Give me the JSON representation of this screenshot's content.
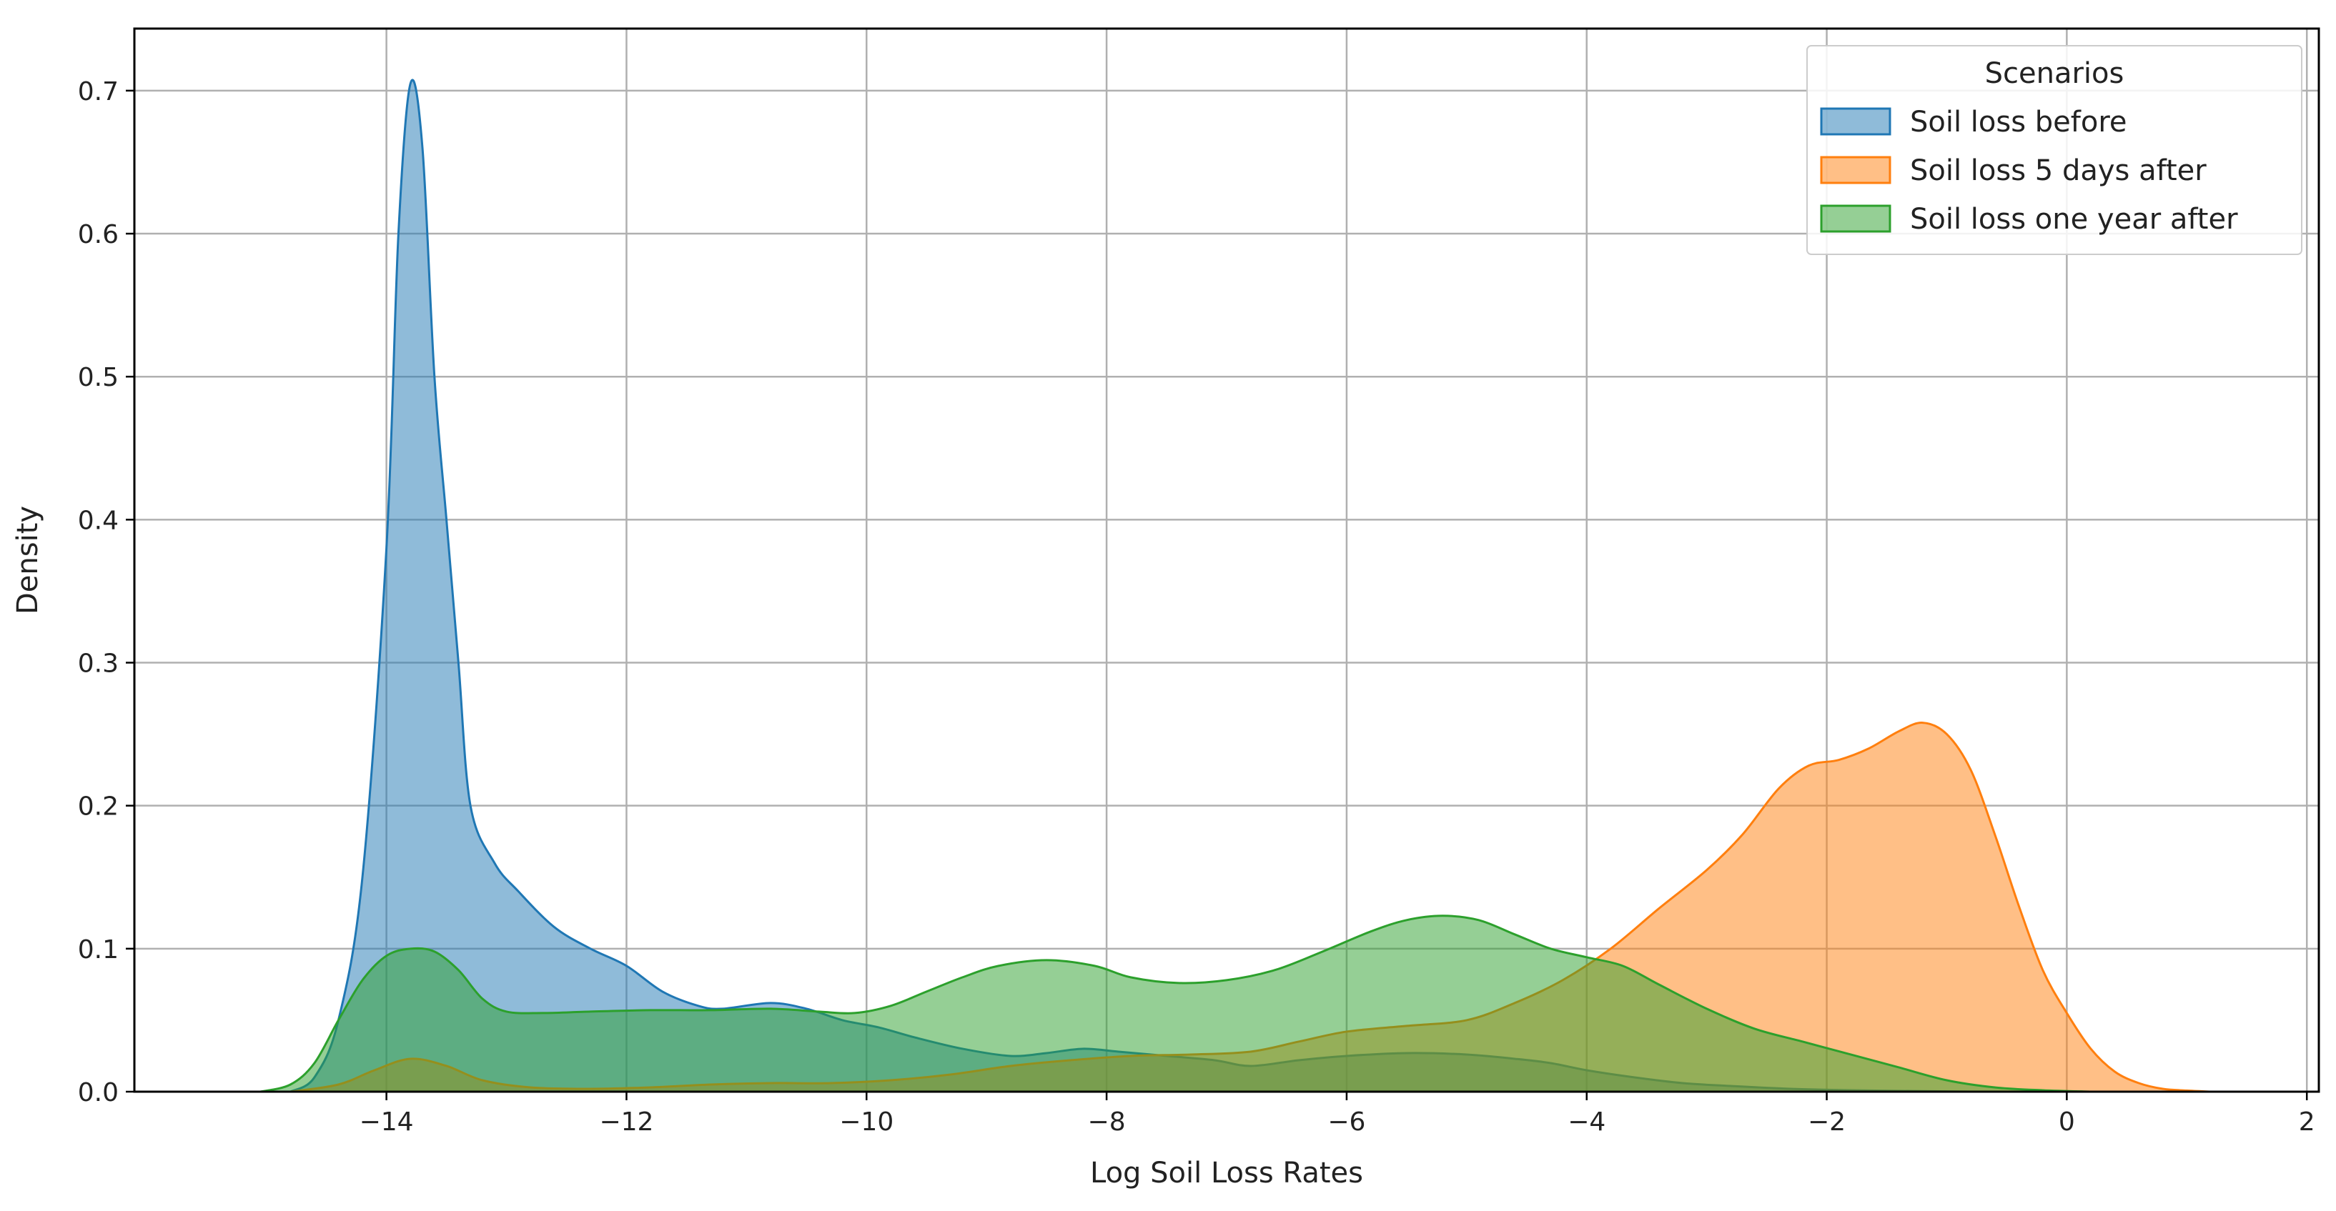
{
  "chart_data": {
    "type": "area",
    "title": "",
    "xlabel": "Log Soil Loss Rates",
    "ylabel": "Density",
    "xlim": [
      -16.1,
      2.1
    ],
    "ylim": [
      0,
      0.7434
    ],
    "xticks": [
      -14,
      -12,
      -10,
      -8,
      -6,
      -4,
      -2,
      0,
      2
    ],
    "xtick_labels": [
      "−14",
      "−12",
      "−10",
      "−8",
      "−6",
      "−4",
      "−2",
      "0",
      "2"
    ],
    "yticks": [
      0.0,
      0.1,
      0.2,
      0.3,
      0.4,
      0.5,
      0.6,
      0.7
    ],
    "ytick_labels": [
      "0.0",
      "0.1",
      "0.2",
      "0.3",
      "0.4",
      "0.5",
      "0.6",
      "0.7"
    ],
    "grid": true,
    "legend": {
      "title": "Scenarios",
      "position": "top-right"
    },
    "series": [
      {
        "name": "Soil loss before",
        "fill": "#1f77b4",
        "line": "#1f77b4",
        "points": [
          [
            -14.8,
            0.0
          ],
          [
            -14.6,
            0.01
          ],
          [
            -14.4,
            0.05
          ],
          [
            -14.2,
            0.15
          ],
          [
            -14.0,
            0.38
          ],
          [
            -13.9,
            0.6
          ],
          [
            -13.8,
            0.705
          ],
          [
            -13.7,
            0.66
          ],
          [
            -13.6,
            0.5
          ],
          [
            -13.5,
            0.4
          ],
          [
            -13.4,
            0.3
          ],
          [
            -13.3,
            0.2
          ],
          [
            -13.1,
            0.16
          ],
          [
            -12.9,
            0.14
          ],
          [
            -12.6,
            0.115
          ],
          [
            -12.3,
            0.1
          ],
          [
            -12.0,
            0.088
          ],
          [
            -11.7,
            0.07
          ],
          [
            -11.4,
            0.06
          ],
          [
            -11.2,
            0.058
          ],
          [
            -10.8,
            0.062
          ],
          [
            -10.5,
            0.058
          ],
          [
            -10.2,
            0.05
          ],
          [
            -9.9,
            0.045
          ],
          [
            -9.6,
            0.038
          ],
          [
            -9.2,
            0.03
          ],
          [
            -8.8,
            0.025
          ],
          [
            -8.5,
            0.027
          ],
          [
            -8.2,
            0.03
          ],
          [
            -7.9,
            0.028
          ],
          [
            -7.5,
            0.025
          ],
          [
            -7.1,
            0.022
          ],
          [
            -6.8,
            0.018
          ],
          [
            -6.4,
            0.022
          ],
          [
            -6.0,
            0.025
          ],
          [
            -5.5,
            0.027
          ],
          [
            -5.0,
            0.026
          ],
          [
            -4.6,
            0.023
          ],
          [
            -4.3,
            0.02
          ],
          [
            -4.0,
            0.015
          ],
          [
            -3.6,
            0.01
          ],
          [
            -3.2,
            0.006
          ],
          [
            -2.8,
            0.004
          ],
          [
            -2.3,
            0.002
          ],
          [
            -1.8,
            0.001
          ],
          [
            -1.3,
            0.0005
          ],
          [
            -0.8,
            0.0
          ]
        ]
      },
      {
        "name": "Soil loss 5 days after",
        "fill": "#ff7f0e",
        "line": "#ff7f0e",
        "points": [
          [
            -14.8,
            0.0
          ],
          [
            -14.4,
            0.005
          ],
          [
            -14.1,
            0.015
          ],
          [
            -13.8,
            0.023
          ],
          [
            -13.5,
            0.018
          ],
          [
            -13.2,
            0.008
          ],
          [
            -12.8,
            0.003
          ],
          [
            -12.3,
            0.002
          ],
          [
            -11.8,
            0.003
          ],
          [
            -11.3,
            0.005
          ],
          [
            -10.8,
            0.006
          ],
          [
            -10.3,
            0.006
          ],
          [
            -9.8,
            0.008
          ],
          [
            -9.3,
            0.012
          ],
          [
            -8.8,
            0.018
          ],
          [
            -8.3,
            0.022
          ],
          [
            -7.8,
            0.025
          ],
          [
            -7.3,
            0.026
          ],
          [
            -6.8,
            0.028
          ],
          [
            -6.4,
            0.035
          ],
          [
            -6.0,
            0.042
          ],
          [
            -5.5,
            0.046
          ],
          [
            -5.0,
            0.05
          ],
          [
            -4.6,
            0.062
          ],
          [
            -4.2,
            0.078
          ],
          [
            -3.8,
            0.1
          ],
          [
            -3.4,
            0.128
          ],
          [
            -3.0,
            0.155
          ],
          [
            -2.7,
            0.18
          ],
          [
            -2.4,
            0.212
          ],
          [
            -2.15,
            0.228
          ],
          [
            -1.9,
            0.232
          ],
          [
            -1.65,
            0.24
          ],
          [
            -1.4,
            0.252
          ],
          [
            -1.2,
            0.258
          ],
          [
            -1.0,
            0.25
          ],
          [
            -0.8,
            0.225
          ],
          [
            -0.6,
            0.18
          ],
          [
            -0.4,
            0.13
          ],
          [
            -0.2,
            0.085
          ],
          [
            0.0,
            0.055
          ],
          [
            0.2,
            0.03
          ],
          [
            0.4,
            0.014
          ],
          [
            0.6,
            0.006
          ],
          [
            0.8,
            0.002
          ],
          [
            1.0,
            0.0008
          ],
          [
            1.2,
            0.0
          ]
        ]
      },
      {
        "name": "Soil loss one year after",
        "fill": "#2ca02c",
        "line": "#2ca02c",
        "points": [
          [
            -15.05,
            0.0
          ],
          [
            -14.8,
            0.005
          ],
          [
            -14.6,
            0.02
          ],
          [
            -14.4,
            0.05
          ],
          [
            -14.2,
            0.078
          ],
          [
            -14.0,
            0.095
          ],
          [
            -13.8,
            0.1
          ],
          [
            -13.6,
            0.098
          ],
          [
            -13.4,
            0.085
          ],
          [
            -13.2,
            0.065
          ],
          [
            -13.0,
            0.056
          ],
          [
            -12.7,
            0.055
          ],
          [
            -12.3,
            0.056
          ],
          [
            -11.8,
            0.057
          ],
          [
            -11.3,
            0.057
          ],
          [
            -10.8,
            0.058
          ],
          [
            -10.4,
            0.056
          ],
          [
            -10.1,
            0.055
          ],
          [
            -9.8,
            0.06
          ],
          [
            -9.5,
            0.07
          ],
          [
            -9.2,
            0.08
          ],
          [
            -8.9,
            0.088
          ],
          [
            -8.5,
            0.092
          ],
          [
            -8.1,
            0.088
          ],
          [
            -7.8,
            0.08
          ],
          [
            -7.4,
            0.076
          ],
          [
            -7.0,
            0.078
          ],
          [
            -6.6,
            0.085
          ],
          [
            -6.2,
            0.098
          ],
          [
            -5.8,
            0.112
          ],
          [
            -5.5,
            0.12
          ],
          [
            -5.2,
            0.123
          ],
          [
            -4.9,
            0.12
          ],
          [
            -4.6,
            0.11
          ],
          [
            -4.3,
            0.1
          ],
          [
            -4.0,
            0.094
          ],
          [
            -3.7,
            0.088
          ],
          [
            -3.4,
            0.075
          ],
          [
            -3.0,
            0.058
          ],
          [
            -2.6,
            0.044
          ],
          [
            -2.2,
            0.035
          ],
          [
            -1.8,
            0.026
          ],
          [
            -1.4,
            0.017
          ],
          [
            -1.0,
            0.008
          ],
          [
            -0.6,
            0.003
          ],
          [
            -0.2,
            0.001
          ],
          [
            0.2,
            0.0
          ]
        ]
      }
    ]
  }
}
